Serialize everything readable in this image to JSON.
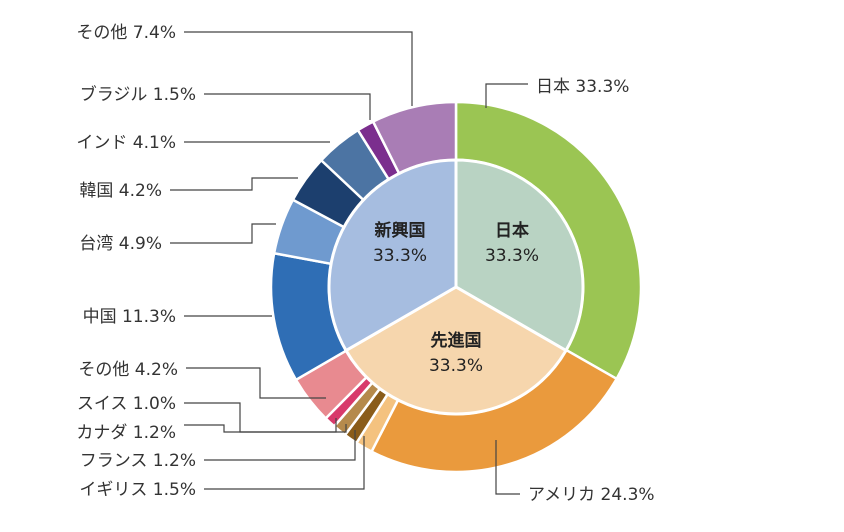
{
  "chart_data": {
    "type": "pie",
    "variant": "nested-donut",
    "inner_ring": [
      {
        "name": "日本",
        "percent_label": "33.3%",
        "value": 33.3,
        "color": "#b9d3c3"
      },
      {
        "name": "先進国",
        "percent_label": "33.3%",
        "value": 33.3,
        "color": "#f6d6ad"
      },
      {
        "name": "新興国",
        "percent_label": "33.3%",
        "value": 33.3,
        "color": "#a6bde0"
      }
    ],
    "outer_ring": [
      {
        "name": "日本",
        "percent_label": "33.3%",
        "value": 33.3,
        "group": "日本",
        "color": "#9bc553"
      },
      {
        "name": "アメリカ",
        "percent_label": "24.3%",
        "value": 24.3,
        "group": "先進国",
        "color": "#ea9a3d"
      },
      {
        "name": "イギリス",
        "percent_label": "1.5%",
        "value": 1.5,
        "group": "先進国",
        "color": "#f4c27f"
      },
      {
        "name": "フランス",
        "percent_label": "1.2%",
        "value": 1.2,
        "group": "先進国",
        "color": "#8a5c1a"
      },
      {
        "name": "カナダ",
        "percent_label": "1.2%",
        "value": 1.2,
        "group": "先進国",
        "color": "#b58a4c"
      },
      {
        "name": "スイス",
        "percent_label": "1.0%",
        "value": 1.0,
        "group": "先進国",
        "color": "#d83a6b"
      },
      {
        "name": "その他",
        "percent_label": "4.2%",
        "value": 4.2,
        "group": "先進国",
        "color": "#e88a90"
      },
      {
        "name": "中国",
        "percent_label": "11.3%",
        "value": 11.3,
        "group": "新興国",
        "color": "#2f6eb5"
      },
      {
        "name": "台湾",
        "percent_label": "4.9%",
        "value": 4.9,
        "group": "新興国",
        "color": "#6f9acf"
      },
      {
        "name": "韓国",
        "percent_label": "4.2%",
        "value": 4.2,
        "group": "新興国",
        "color": "#1c3f6e"
      },
      {
        "name": "インド",
        "percent_label": "4.1%",
        "value": 4.1,
        "group": "新興国",
        "color": "#4c74a3"
      },
      {
        "name": "ブラジル",
        "percent_label": "1.5%",
        "value": 1.5,
        "group": "新興国",
        "color": "#7b2e8e"
      },
      {
        "name": "その他",
        "percent_label": "7.4%",
        "value": 7.4,
        "group": "新興国",
        "color": "#a97db5"
      }
    ]
  }
}
